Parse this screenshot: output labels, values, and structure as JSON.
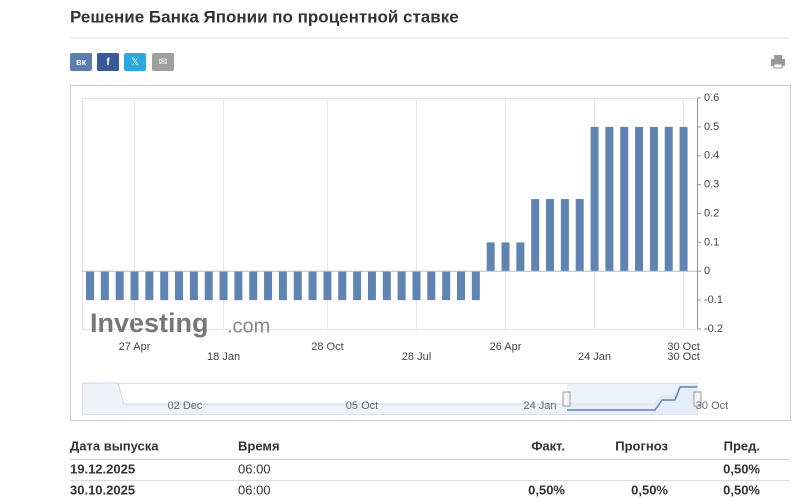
{
  "header": {
    "title": "Решение Банка Японии по процентной ставке",
    "share": [
      "вк",
      "f",
      "𝕏",
      "✉"
    ]
  },
  "chart_data": {
    "type": "bar",
    "color": "#5f84b4",
    "categories": [
      null,
      null,
      null,
      "27 Apr",
      null,
      null,
      null,
      null,
      null,
      "18 Jan",
      null,
      null,
      null,
      null,
      null,
      null,
      "28 Oct",
      null,
      null,
      null,
      null,
      null,
      "28 Jul",
      null,
      null,
      null,
      null,
      null,
      "26 Apr",
      null,
      null,
      null,
      null,
      null,
      "24 Jan",
      null,
      null,
      null,
      null,
      null,
      "30 Oct"
    ],
    "x_end_label": "30 Oct",
    "values": [
      -0.1,
      -0.1,
      -0.1,
      -0.1,
      -0.1,
      -0.1,
      -0.1,
      -0.1,
      -0.1,
      -0.1,
      -0.1,
      -0.1,
      -0.1,
      -0.1,
      -0.1,
      -0.1,
      -0.1,
      -0.1,
      -0.1,
      -0.1,
      -0.1,
      -0.1,
      -0.1,
      -0.1,
      -0.1,
      -0.1,
      -0.1,
      0.1,
      0.1,
      0.1,
      0.25,
      0.25,
      0.25,
      0.25,
      0.5,
      0.5,
      0.5,
      0.5,
      0.5,
      0.5,
      0.5
    ],
    "ylim": [
      -0.2,
      0.6
    ],
    "yticks": [
      0.6,
      0.5,
      0.4,
      0.3,
      0.2,
      0.1,
      0,
      -0.1,
      -0.2
    ],
    "watermark": {
      "brand": "Investing",
      "suffix": ".com"
    },
    "navigator": {
      "labels": [
        "02 Dec",
        "05 Oct",
        "24 Jan",
        "30 Oct"
      ]
    }
  },
  "table": {
    "headers": [
      "Дата выпуска",
      "Время",
      "Факт.",
      "Прогноз",
      "Пред."
    ],
    "rows": [
      {
        "date": "19.12.2025",
        "time": "06:00",
        "previous": "0,50%"
      },
      {
        "date": "30.10.2025",
        "time": "06:00",
        "actual": "0,50%",
        "forecast": "0,50%",
        "previous": "0,50%"
      }
    ]
  }
}
